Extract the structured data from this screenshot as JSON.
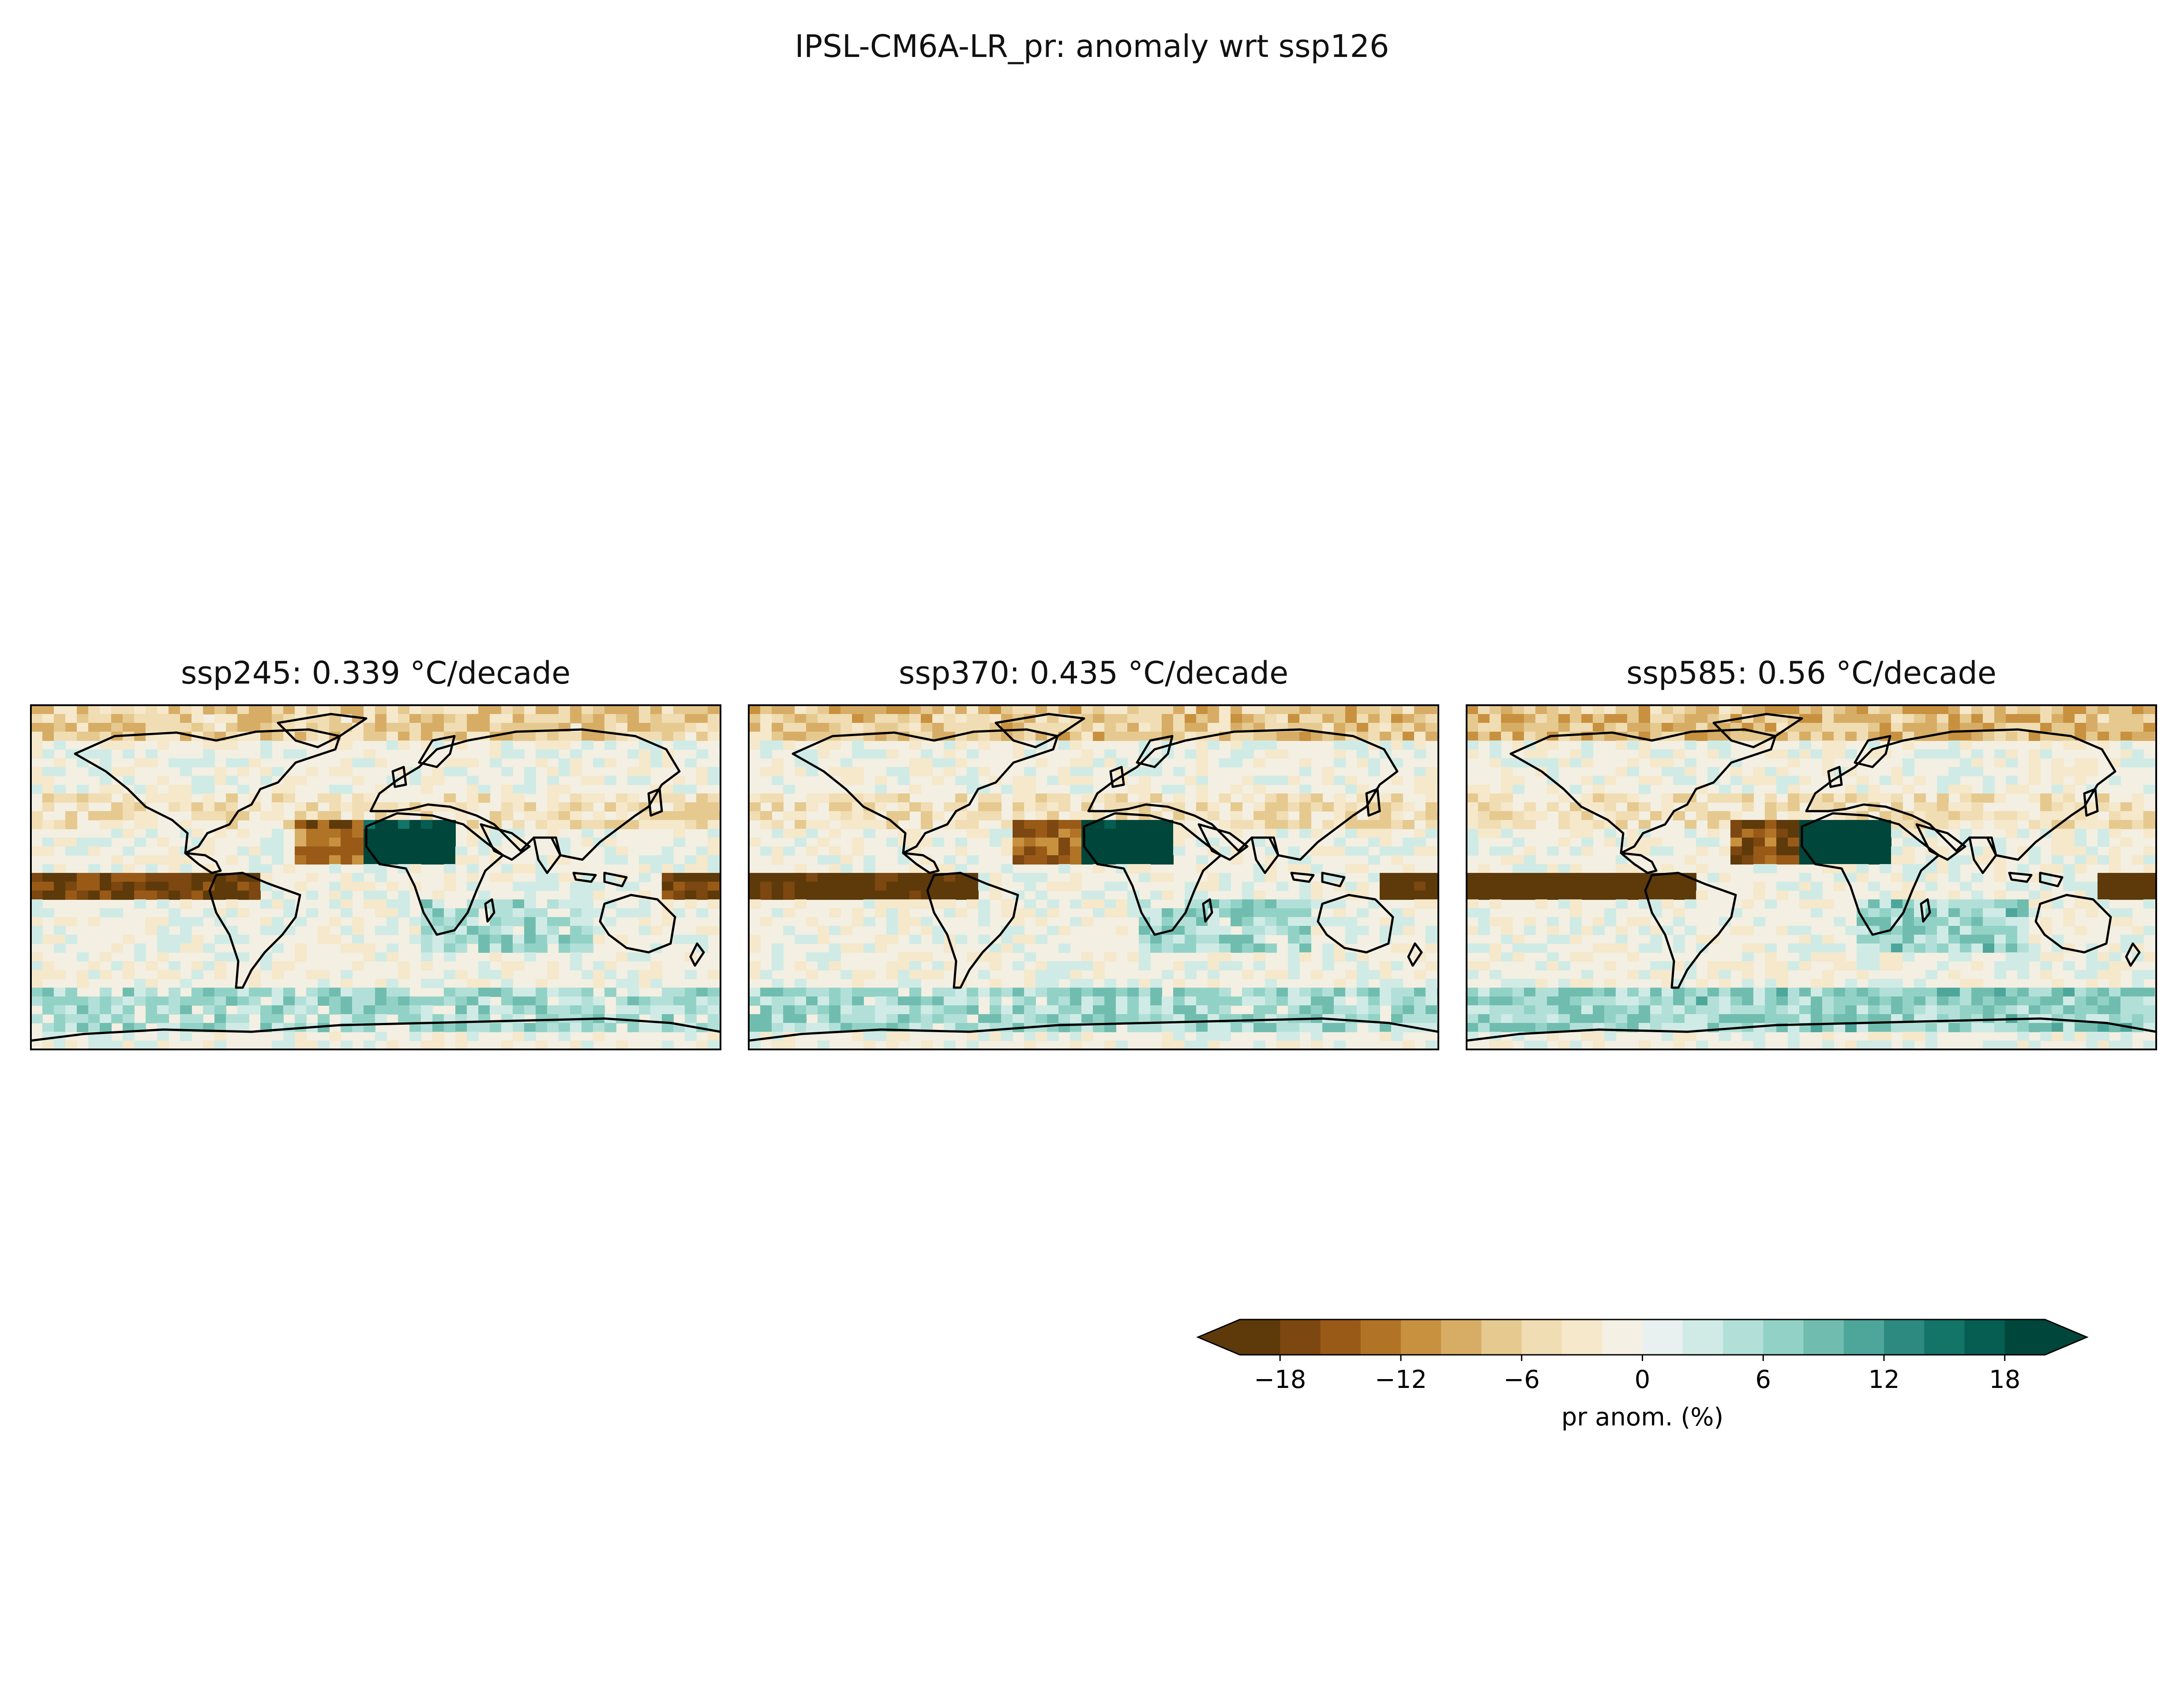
{
  "figure": {
    "title": "IPSL-CM6A-LR_pr: anomaly wrt ssp126"
  },
  "panels": [
    {
      "title": "ssp245: 0.339 °C/decade",
      "scenario": "ssp245",
      "trend": 0.339,
      "trend_unit": "°C/decade"
    },
    {
      "title": "ssp370: 0.435 °C/decade",
      "scenario": "ssp370",
      "trend": 0.435,
      "trend_unit": "°C/decade"
    },
    {
      "title": "ssp585: 0.56 °C/decade",
      "scenario": "ssp585",
      "trend": 0.56,
      "trend_unit": "°C/decade"
    }
  ],
  "colorbar": {
    "label": "pr anom. (%)",
    "ticks": [
      "−18",
      "−12",
      "−6",
      "0",
      "6",
      "12",
      "18"
    ],
    "tick_values": [
      -18,
      -12,
      -6,
      0,
      6,
      12,
      18
    ],
    "range": [
      -20,
      20
    ],
    "extend": "both",
    "colors": [
      "#5e3a0a",
      "#7c4710",
      "#995a18",
      "#b17326",
      "#c8913f",
      "#d7ad66",
      "#e5c98f",
      "#f1ddb3",
      "#f5e8cb",
      "#f4f0e4",
      "#e8f1ef",
      "#d0ebe6",
      "#b2e0d8",
      "#92d2c6",
      "#70bdb0",
      "#4ea69a",
      "#2d8a80",
      "#137468",
      "#065d52",
      "#01463b"
    ]
  },
  "chart_data": {
    "type": "heatmap",
    "title": "IPSL-CM6A-LR_pr: anomaly wrt ssp126",
    "panels": [
      "ssp245: 0.339 °C/decade",
      "ssp370: 0.435 °C/decade",
      "ssp585: 0.56 °C/decade"
    ],
    "colorbar_label": "pr anom. (%)",
    "colorbar_range": [
      -20,
      20
    ],
    "colorbar_ticks": [
      -18,
      -12,
      -6,
      0,
      6,
      12,
      18
    ],
    "colormap": "BrBG",
    "extend": "both"
  }
}
